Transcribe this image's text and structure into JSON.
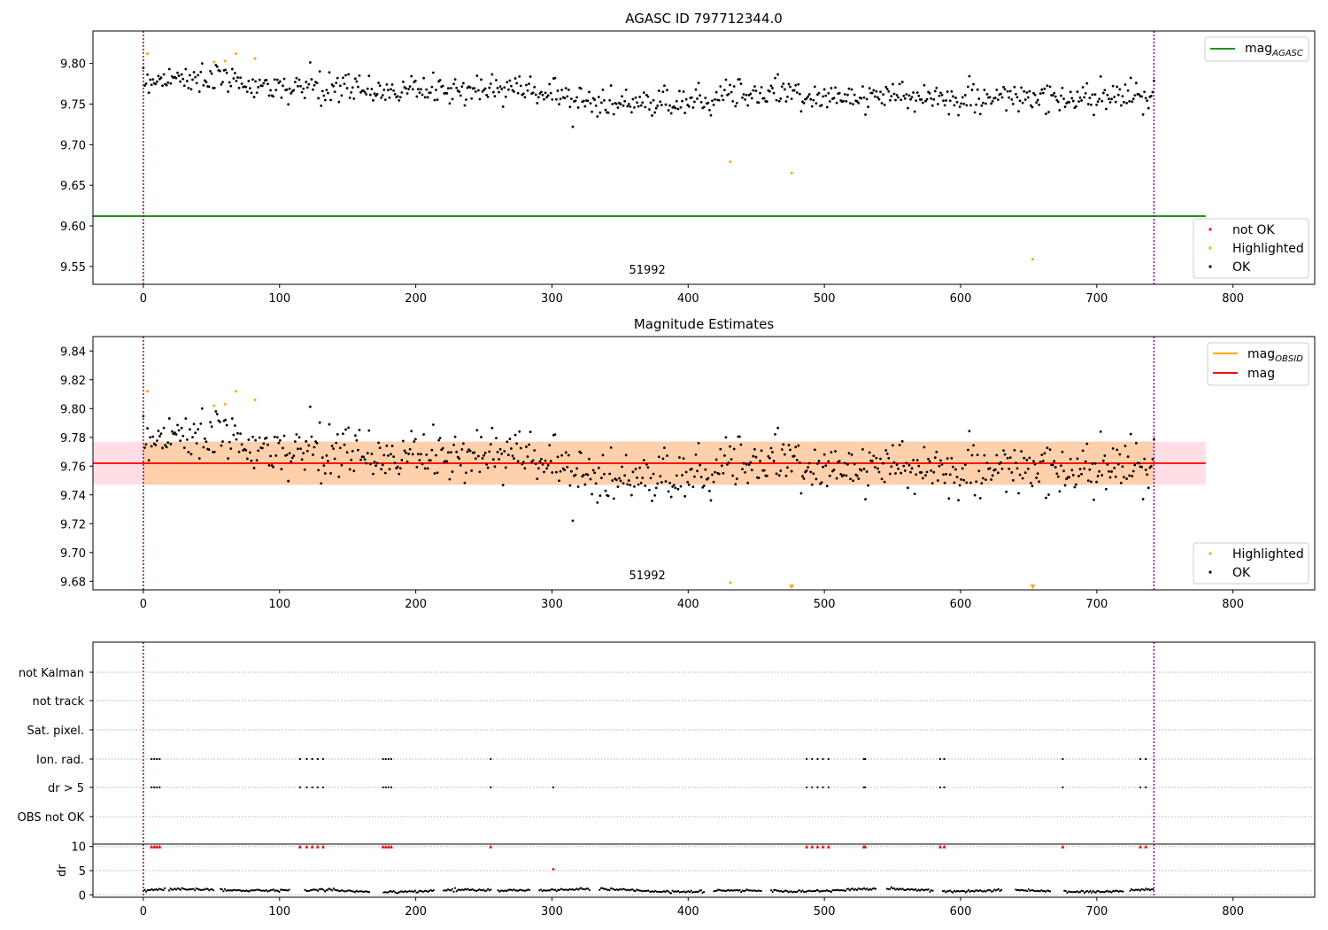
{
  "chart_data": [
    {
      "type": "scatter",
      "title": "AGASC ID 797712344.0",
      "xlim": [
        -37,
        860
      ],
      "ylim": [
        9.528,
        9.84
      ],
      "xticks": [
        0,
        100,
        200,
        300,
        400,
        500,
        600,
        700,
        800
      ],
      "yticks": [
        9.55,
        9.6,
        9.65,
        9.7,
        9.75,
        9.8
      ],
      "ytick_labels": [
        "9.55",
        "9.60",
        "9.65",
        "9.70",
        "9.75",
        "9.80"
      ],
      "lines": [
        {
          "name": "mag",
          "subscript": "AGASC",
          "y": 9.612,
          "x": [
            -37,
            780
          ],
          "color": "#008000"
        }
      ],
      "obsid_label": {
        "text": "51992",
        "x": 370,
        "y": 9.541
      },
      "vlines": [
        0,
        742
      ],
      "highlighted_points": [
        [
          3,
          9.812
        ],
        [
          52,
          9.802
        ],
        [
          60,
          9.803
        ],
        [
          68,
          9.812
        ],
        [
          82,
          9.806
        ],
        [
          431,
          9.679
        ],
        [
          476,
          9.665
        ],
        [
          653,
          9.559
        ]
      ],
      "ok_series": {
        "n": 740,
        "x_start": 0,
        "x_end": 742,
        "trend": [
          [
            0,
            9.78
          ],
          [
            40,
            9.783
          ],
          [
            100,
            9.77
          ],
          [
            200,
            9.767
          ],
          [
            280,
            9.77
          ],
          [
            330,
            9.752
          ],
          [
            380,
            9.748
          ],
          [
            430,
            9.765
          ],
          [
            500,
            9.76
          ],
          [
            600,
            9.757
          ],
          [
            742,
            9.757
          ]
        ],
        "spread": 0.009
      },
      "legends": [
        {
          "position": "top-right",
          "entries": [
            {
              "label": "mag",
              "subscript": "AGASC",
              "color": "#008000",
              "kind": "line"
            }
          ]
        },
        {
          "position": "bottom-right",
          "entries": [
            {
              "label": "not OK",
              "color": "#ff0000",
              "kind": "dot"
            },
            {
              "label": "Highlighted",
              "color": "#ffa500",
              "kind": "dot"
            },
            {
              "label": "OK",
              "color": "#000000",
              "kind": "dot"
            }
          ]
        }
      ]
    },
    {
      "type": "scatter",
      "title": "Magnitude Estimates",
      "xlim": [
        -37,
        860
      ],
      "ylim": [
        9.674,
        9.85
      ],
      "xticks": [
        0,
        100,
        200,
        300,
        400,
        500,
        600,
        700,
        800
      ],
      "yticks": [
        9.68,
        9.7,
        9.72,
        9.74,
        9.76,
        9.78,
        9.8,
        9.82,
        9.84
      ],
      "ytick_labels": [
        "9.68",
        "9.70",
        "9.72",
        "9.74",
        "9.76",
        "9.78",
        "9.80",
        "9.82",
        "9.84"
      ],
      "lines": [
        {
          "name": "mag",
          "subscript": "OBSID",
          "y": 9.762,
          "x": [
            0,
            742
          ],
          "color": "#ffa500"
        },
        {
          "name": "mag",
          "y": 9.762,
          "x": [
            -37,
            780
          ],
          "color": "#ff0000"
        }
      ],
      "bands": [
        {
          "y0": 9.747,
          "y1": 9.777,
          "x": [
            -37,
            780
          ],
          "color": "#ffc0cb",
          "opacity": 0.5
        },
        {
          "y0": 9.747,
          "y1": 9.777,
          "x": [
            0,
            742
          ],
          "color": "#ffa500",
          "opacity": 0.25
        }
      ],
      "obsid_label": {
        "text": "51992",
        "x": 370,
        "y": 9.6815
      },
      "vlines": [
        0,
        742
      ],
      "highlighted_points": [
        [
          3,
          9.812
        ],
        [
          52,
          9.802
        ],
        [
          60,
          9.803
        ],
        [
          68,
          9.812
        ],
        [
          82,
          9.806
        ],
        [
          431,
          9.679
        ]
      ],
      "highlighted_offscale": [
        476,
        653
      ],
      "ok_series": {
        "n": 740,
        "x_start": 0,
        "x_end": 742,
        "trend": [
          [
            0,
            9.78
          ],
          [
            40,
            9.783
          ],
          [
            100,
            9.77
          ],
          [
            200,
            9.767
          ],
          [
            280,
            9.77
          ],
          [
            330,
            9.752
          ],
          [
            380,
            9.748
          ],
          [
            430,
            9.765
          ],
          [
            500,
            9.76
          ],
          [
            600,
            9.757
          ],
          [
            742,
            9.757
          ]
        ],
        "spread": 0.009
      },
      "legends": [
        {
          "position": "top-right",
          "entries": [
            {
              "label": "mag",
              "subscript": "OBSID",
              "color": "#ffa500",
              "kind": "line"
            },
            {
              "label": "mag",
              "color": "#ff0000",
              "kind": "line"
            }
          ]
        },
        {
          "position": "bottom-right",
          "entries": [
            {
              "label": "Highlighted",
              "color": "#ffa500",
              "kind": "dot"
            },
            {
              "label": "OK",
              "color": "#000000",
              "kind": "dot"
            }
          ]
        }
      ]
    },
    {
      "type": "scatter",
      "title": "",
      "xlim": [
        -37,
        860
      ],
      "xticks": [
        0,
        100,
        200,
        300,
        400,
        500,
        600,
        700,
        800
      ],
      "vlines": [
        0,
        742
      ],
      "flag_rows": [
        "not Kalman",
        "not track",
        "Sat. pixel.",
        "Ion. rad.",
        "dr > 5",
        "OBS not OK"
      ],
      "flag_x": {
        "Ion. rad.": [
          6,
          8,
          10,
          12,
          115,
          120,
          124,
          128,
          132,
          176,
          178,
          180,
          182,
          255,
          487,
          491,
          495,
          499,
          503,
          529,
          530,
          585,
          588,
          675,
          732,
          736
        ],
        "dr > 5": [
          6,
          8,
          10,
          12,
          115,
          120,
          124,
          128,
          132,
          176,
          178,
          180,
          182,
          255,
          301,
          487,
          491,
          495,
          499,
          503,
          529,
          530,
          585,
          588,
          675,
          732,
          736
        ]
      },
      "dr": {
        "ylabel": "dr",
        "ylim": [
          -0.5,
          10.5
        ],
        "yticks": [
          0,
          5,
          10
        ],
        "ytick_labels": [
          "0",
          "5",
          "10"
        ],
        "clipped_markers_x": [
          6,
          8,
          10,
          12,
          115,
          120,
          124,
          128,
          132,
          176,
          178,
          180,
          182,
          255,
          487,
          491,
          495,
          499,
          503,
          529,
          530,
          585,
          588,
          675,
          732,
          736
        ],
        "clipped_value": 10,
        "outlier": [
          301,
          5.3
        ],
        "baseline_mean": 0.9,
        "baseline_amp": 0.35,
        "gaps": [
          [
            16,
            18
          ],
          [
            52,
            56
          ],
          [
            108,
            118
          ],
          [
            166,
            176
          ],
          [
            214,
            220
          ],
          [
            256,
            260
          ],
          [
            284,
            290
          ],
          [
            328,
            334
          ],
          [
            412,
            418
          ],
          [
            454,
            460
          ],
          [
            538,
            545
          ],
          [
            580,
            586
          ],
          [
            630,
            640
          ],
          [
            666,
            676
          ],
          [
            720,
            724
          ]
        ]
      }
    }
  ]
}
